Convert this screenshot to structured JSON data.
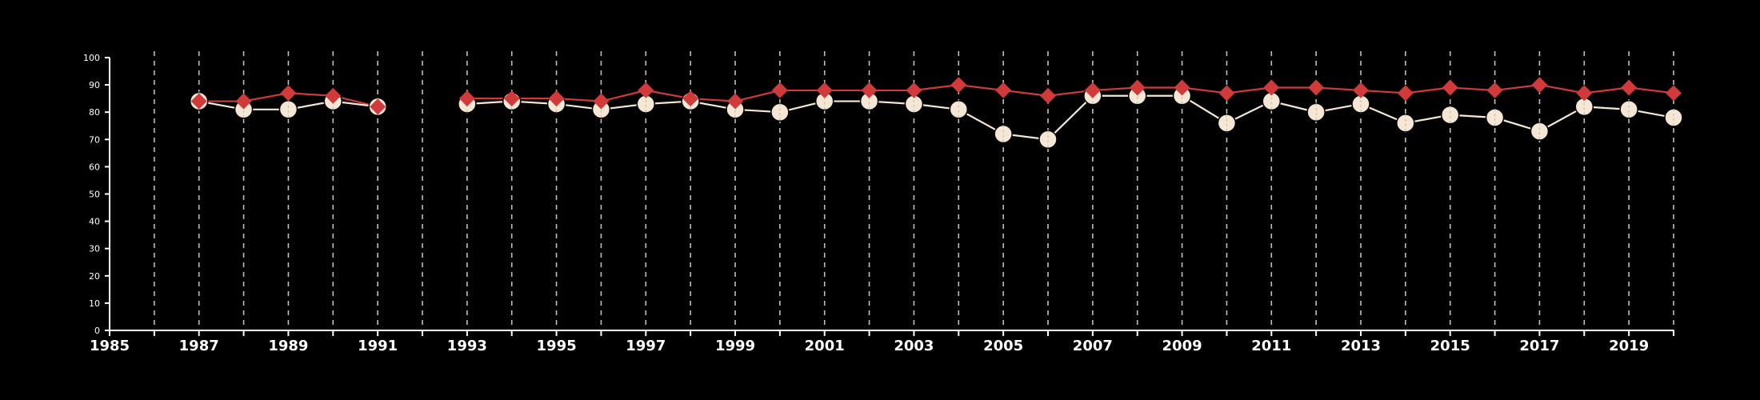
{
  "chart_data": {
    "type": "line",
    "title": "",
    "xlabel": "",
    "ylabel": "",
    "xlim": [
      1985,
      2020
    ],
    "ylim": [
      0,
      100
    ],
    "y_ticks": [
      0,
      10,
      20,
      30,
      40,
      50,
      60,
      70,
      80,
      90,
      100
    ],
    "x_ticks": [
      1985,
      1987,
      1989,
      1991,
      1993,
      1995,
      1997,
      1999,
      2001,
      2003,
      2005,
      2007,
      2009,
      2011,
      2013,
      2015,
      2017,
      2019
    ],
    "grid": "vertical dashed lines at each year",
    "legend": "none",
    "colors": {
      "background": "#000000",
      "axis": "#ffffff",
      "series_a": "#d13a3a",
      "series_b": "#f6e7d4",
      "grid": "#bfbfbf"
    },
    "series": [
      {
        "marker": "diamond",
        "color": "#d13a3a",
        "points": [
          [
            1987,
            84
          ],
          [
            1988,
            84
          ],
          [
            1989,
            87
          ],
          [
            1990,
            86
          ],
          [
            1991,
            82
          ],
          [
            1993,
            85
          ],
          [
            1994,
            85
          ],
          [
            1995,
            85
          ],
          [
            1996,
            84
          ],
          [
            1997,
            88
          ],
          [
            1998,
            85
          ],
          [
            1999,
            84
          ],
          [
            2000,
            88
          ],
          [
            2001,
            88
          ],
          [
            2002,
            88
          ],
          [
            2003,
            88
          ],
          [
            2004,
            90
          ],
          [
            2005,
            88
          ],
          [
            2006,
            86
          ],
          [
            2007,
            88
          ],
          [
            2008,
            89
          ],
          [
            2009,
            89
          ],
          [
            2010,
            87
          ],
          [
            2011,
            89
          ],
          [
            2012,
            89
          ],
          [
            2013,
            88
          ],
          [
            2014,
            87
          ],
          [
            2015,
            89
          ],
          [
            2016,
            88
          ],
          [
            2017,
            90
          ],
          [
            2018,
            87
          ],
          [
            2019,
            89
          ],
          [
            2020,
            87
          ]
        ]
      },
      {
        "marker": "circle",
        "color": "#f6e7d4",
        "points": [
          [
            1987,
            84
          ],
          [
            1988,
            81
          ],
          [
            1989,
            81
          ],
          [
            1990,
            84
          ],
          [
            1991,
            82
          ],
          [
            1993,
            83
          ],
          [
            1994,
            84
          ],
          [
            1995,
            83
          ],
          [
            1996,
            81
          ],
          [
            1997,
            83
          ],
          [
            1998,
            84
          ],
          [
            1999,
            81
          ],
          [
            2000,
            80
          ],
          [
            2001,
            84
          ],
          [
            2002,
            84
          ],
          [
            2003,
            83
          ],
          [
            2004,
            81
          ],
          [
            2005,
            72
          ],
          [
            2006,
            70
          ],
          [
            2007,
            86
          ],
          [
            2008,
            86
          ],
          [
            2009,
            86
          ],
          [
            2010,
            76
          ],
          [
            2011,
            84
          ],
          [
            2012,
            80
          ],
          [
            2013,
            83
          ],
          [
            2014,
            76
          ],
          [
            2015,
            79
          ],
          [
            2016,
            78
          ],
          [
            2017,
            73
          ],
          [
            2018,
            82
          ],
          [
            2019,
            81
          ],
          [
            2020,
            78
          ]
        ]
      }
    ]
  }
}
